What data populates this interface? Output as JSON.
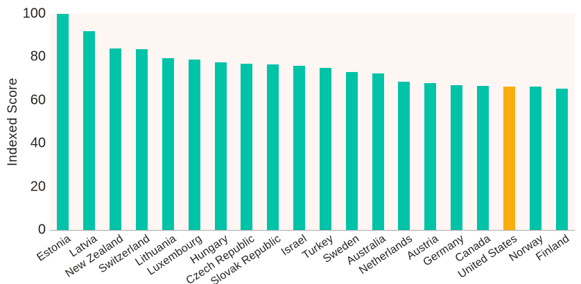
{
  "chart_data": {
    "type": "bar",
    "title": "",
    "xlabel": "",
    "ylabel": "Indexed Score",
    "ylim": [
      0,
      100
    ],
    "yticks": [
      0,
      20,
      40,
      60,
      80,
      100
    ],
    "grid": false,
    "legend_position": "none",
    "categories": [
      "Estonia",
      "Latvia",
      "New Zealand",
      "Switzerland",
      "Lithuania",
      "Luxembourg",
      "Hungary",
      "Czech Republic",
      "Slovak Republic",
      "Israel",
      "Turkey",
      "Sweden",
      "Australia",
      "Netherlands",
      "Austria",
      "Germany",
      "Canada",
      "United States",
      "Norway",
      "Finland"
    ],
    "values": [
      100,
      92,
      84,
      83.5,
      79.5,
      79,
      77.5,
      77,
      76.5,
      76,
      75,
      73,
      72.5,
      68.5,
      68,
      67,
      66.7,
      66.5,
      66.2,
      65.3
    ],
    "highlight_category": "United States",
    "colors": {
      "bar": "#00c3a8",
      "highlight_bar": "#faad0f",
      "panel_background": "#fdf6f3",
      "page_background": "#ffffff",
      "axis_line": "#ababab",
      "text": "#272320"
    }
  }
}
